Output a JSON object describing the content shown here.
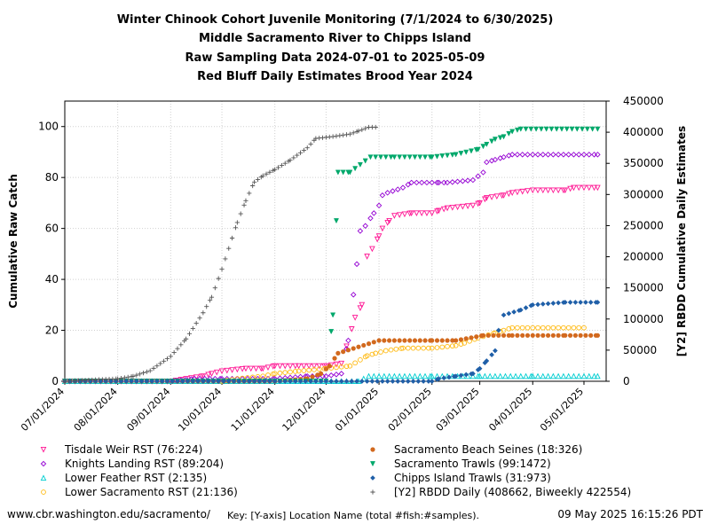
{
  "titles": [
    "Winter Chinook Cohort Juvenile Monitoring (7/1/2024 to 6/30/2025)",
    "Middle Sacramento River to Chipps Island",
    "Raw Sampling Data 2024-07-01 to 2025-05-09",
    "Red Bluff Daily Estimates Brood Year 2024"
  ],
  "footer": {
    "left": "www.cbr.washington.edu/sacramento/",
    "key": "Key: [Y-axis] Location Name (total #fish:#samples).",
    "right": "09 May 2025 16:15:26 PDT"
  },
  "chart_data": {
    "type": "scatter",
    "xlabel": "",
    "ylabel": "Cumulative Raw Catch",
    "y2label": "[Y2] RBDD Cumulative Daily Estimates",
    "xlim": [
      "2024-07-01",
      "2025-05-14"
    ],
    "ylim": [
      0,
      110
    ],
    "y2lim": [
      0,
      450000
    ],
    "x_ticks": [
      "07/01/2024",
      "08/01/2024",
      "09/01/2024",
      "10/01/2024",
      "11/01/2024",
      "12/01/2024",
      "01/01/2025",
      "02/01/2025",
      "03/01/2025",
      "04/01/2025",
      "05/01/2025"
    ],
    "y_ticks": [
      0,
      20,
      40,
      60,
      80,
      100
    ],
    "y2_ticks": [
      "0",
      "50000",
      "100000",
      "150000",
      "200000",
      "250000",
      "300000",
      "350000",
      "400000",
      "450000"
    ],
    "grid": true,
    "legend_position": "bottom",
    "series": [
      {
        "name": "Tisdale Weir RST (76:224)",
        "marker": "triangle-down-open",
        "color": "#ff1493",
        "axis": "y",
        "points": [
          [
            "2024-07-01",
            0
          ],
          [
            "2024-09-01",
            0
          ],
          [
            "2024-09-10",
            1
          ],
          [
            "2024-09-20",
            2
          ],
          [
            "2024-09-25",
            3
          ],
          [
            "2024-10-01",
            4
          ],
          [
            "2024-10-15",
            5
          ],
          [
            "2024-10-25",
            5
          ],
          [
            "2024-11-01",
            6
          ],
          [
            "2024-11-15",
            6
          ],
          [
            "2024-12-01",
            6
          ],
          [
            "2024-12-10",
            7
          ],
          [
            "2024-12-18",
            25
          ],
          [
            "2024-12-22",
            30
          ],
          [
            "2024-12-25",
            49
          ],
          [
            "2024-12-28",
            52
          ],
          [
            "2025-01-01",
            57
          ],
          [
            "2025-01-03",
            60
          ],
          [
            "2025-01-07",
            63
          ],
          [
            "2025-01-10",
            65
          ],
          [
            "2025-01-20",
            66
          ],
          [
            "2025-02-01",
            66
          ],
          [
            "2025-02-05",
            67
          ],
          [
            "2025-02-10",
            68
          ],
          [
            "2025-02-25",
            69
          ],
          [
            "2025-03-01",
            70
          ],
          [
            "2025-03-05",
            72
          ],
          [
            "2025-03-15",
            73
          ],
          [
            "2025-03-20",
            74
          ],
          [
            "2025-04-01",
            75
          ],
          [
            "2025-04-20",
            75
          ],
          [
            "2025-04-25",
            76
          ],
          [
            "2025-05-09",
            76
          ]
        ]
      },
      {
        "name": "Knights Landing RST (89:204)",
        "marker": "diamond-open",
        "color": "#9400d3",
        "axis": "y",
        "points": [
          [
            "2024-07-01",
            0
          ],
          [
            "2024-08-15",
            0
          ],
          [
            "2024-09-01",
            0
          ],
          [
            "2024-09-15",
            1
          ],
          [
            "2024-10-01",
            1
          ],
          [
            "2024-11-01",
            1
          ],
          [
            "2024-11-20",
            2
          ],
          [
            "2024-12-01",
            2
          ],
          [
            "2024-12-10",
            3
          ],
          [
            "2024-12-14",
            16
          ],
          [
            "2024-12-17",
            34
          ],
          [
            "2024-12-19",
            46
          ],
          [
            "2024-12-21",
            59
          ],
          [
            "2024-12-24",
            61
          ],
          [
            "2024-12-27",
            64
          ],
          [
            "2024-12-29",
            66
          ],
          [
            "2025-01-01",
            69
          ],
          [
            "2025-01-03",
            73
          ],
          [
            "2025-01-06",
            74
          ],
          [
            "2025-01-15",
            76
          ],
          [
            "2025-01-20",
            78
          ],
          [
            "2025-02-05",
            78
          ],
          [
            "2025-02-10",
            78
          ],
          [
            "2025-02-25",
            79
          ],
          [
            "2025-03-03",
            82
          ],
          [
            "2025-03-05",
            86
          ],
          [
            "2025-03-10",
            87
          ],
          [
            "2025-03-15",
            88
          ],
          [
            "2025-03-20",
            89
          ],
          [
            "2025-05-09",
            89
          ]
        ]
      },
      {
        "name": "Lower Feather RST (2:135)",
        "marker": "triangle-up-open",
        "color": "#00ced1",
        "axis": "y",
        "points": [
          [
            "2024-07-01",
            0
          ],
          [
            "2024-12-20",
            0
          ],
          [
            "2024-12-26",
            2
          ],
          [
            "2025-02-01",
            2
          ],
          [
            "2025-03-01",
            2
          ],
          [
            "2025-04-01",
            2
          ],
          [
            "2025-05-01",
            2
          ],
          [
            "2025-05-09",
            2
          ]
        ]
      },
      {
        "name": "Lower Sacramento RST (21:136)",
        "marker": "circle-open",
        "color": "#ffb90f",
        "axis": "y",
        "points": [
          [
            "2024-10-01",
            0
          ],
          [
            "2024-10-10",
            1
          ],
          [
            "2024-10-25",
            2
          ],
          [
            "2024-11-01",
            3
          ],
          [
            "2024-11-15",
            4
          ],
          [
            "2024-12-01",
            5
          ],
          [
            "2024-12-15",
            6
          ],
          [
            "2024-12-25",
            10
          ],
          [
            "2024-12-30",
            11
          ],
          [
            "2025-01-05",
            12
          ],
          [
            "2025-01-15",
            13
          ],
          [
            "2025-02-01",
            13
          ],
          [
            "2025-02-15",
            14
          ],
          [
            "2025-02-20",
            15
          ],
          [
            "2025-02-28",
            17
          ],
          [
            "2025-03-10",
            19
          ],
          [
            "2025-03-15",
            20
          ],
          [
            "2025-03-20",
            21
          ],
          [
            "2025-05-01",
            21
          ]
        ]
      },
      {
        "name": "Sacramento Beach Seines (18:326)",
        "marker": "circle-filled",
        "color": "#d2691e",
        "axis": "y",
        "points": [
          [
            "2024-07-01",
            0
          ],
          [
            "2024-11-01",
            0
          ],
          [
            "2024-11-20",
            1
          ],
          [
            "2024-11-28",
            3
          ],
          [
            "2024-12-03",
            6
          ],
          [
            "2024-12-08",
            11
          ],
          [
            "2025-01-01",
            16
          ],
          [
            "2025-01-10",
            16
          ],
          [
            "2025-02-01",
            16
          ],
          [
            "2025-02-15",
            16
          ],
          [
            "2025-03-03",
            18
          ],
          [
            "2025-03-20",
            18
          ],
          [
            "2025-04-01",
            18
          ],
          [
            "2025-04-20",
            18
          ],
          [
            "2025-05-09",
            18
          ]
        ]
      },
      {
        "name": "Sacramento Trawls (99:1472)",
        "marker": "triangle-down-filled",
        "color": "#00a86b",
        "axis": "y",
        "points": [
          [
            "2024-07-01",
            0
          ],
          [
            "2024-12-01",
            0
          ],
          [
            "2024-12-05",
            26
          ],
          [
            "2024-12-07",
            63
          ],
          [
            "2024-12-08",
            82
          ],
          [
            "2024-12-15",
            82
          ],
          [
            "2024-12-27",
            88
          ],
          [
            "2025-01-10",
            88
          ],
          [
            "2025-02-01",
            88
          ],
          [
            "2025-02-15",
            89
          ],
          [
            "2025-02-28",
            91
          ],
          [
            "2025-03-05",
            93
          ],
          [
            "2025-03-10",
            95
          ],
          [
            "2025-03-15",
            96
          ],
          [
            "2025-03-20",
            98
          ],
          [
            "2025-03-25",
            99
          ],
          [
            "2025-05-09",
            99
          ]
        ]
      },
      {
        "name": "Chipps Island Trawls (31:973)",
        "marker": "diamond-filled",
        "color": "#1f5fa8",
        "axis": "y",
        "points": [
          [
            "2024-07-01",
            0
          ],
          [
            "2025-02-01",
            0
          ],
          [
            "2025-02-05",
            1
          ],
          [
            "2025-02-15",
            2
          ],
          [
            "2025-02-25",
            3
          ],
          [
            "2025-03-01",
            5
          ],
          [
            "2025-03-05",
            8
          ],
          [
            "2025-03-10",
            12
          ],
          [
            "2025-03-12",
            20
          ],
          [
            "2025-03-15",
            26
          ],
          [
            "2025-03-25",
            28
          ],
          [
            "2025-04-01",
            30
          ],
          [
            "2025-04-20",
            31
          ],
          [
            "2025-05-09",
            31
          ]
        ]
      },
      {
        "name": "[Y2] RBDD Daily (408662, Biweekly 422554)",
        "marker": "plus",
        "color": "#555555",
        "axis": "y2",
        "points": [
          [
            "2024-07-01",
            0
          ],
          [
            "2024-07-15",
            2000
          ],
          [
            "2024-08-01",
            4000
          ],
          [
            "2024-08-10",
            8000
          ],
          [
            "2024-08-20",
            17000
          ],
          [
            "2024-09-01",
            40000
          ],
          [
            "2024-09-10",
            68000
          ],
          [
            "2024-09-20",
            110000
          ],
          [
            "2024-09-25",
            135000
          ],
          [
            "2024-10-01",
            180000
          ],
          [
            "2024-10-10",
            255000
          ],
          [
            "2024-10-15",
            290000
          ],
          [
            "2024-10-20",
            320000
          ],
          [
            "2024-10-25",
            330000
          ],
          [
            "2024-11-01",
            340000
          ],
          [
            "2024-11-10",
            355000
          ],
          [
            "2024-11-20",
            375000
          ],
          [
            "2024-11-25",
            390000
          ],
          [
            "2024-12-05",
            393000
          ],
          [
            "2024-12-15",
            397000
          ],
          [
            "2024-12-20",
            402000
          ],
          [
            "2024-12-26",
            408000
          ],
          [
            "2024-12-30",
            408000
          ]
        ]
      }
    ]
  }
}
